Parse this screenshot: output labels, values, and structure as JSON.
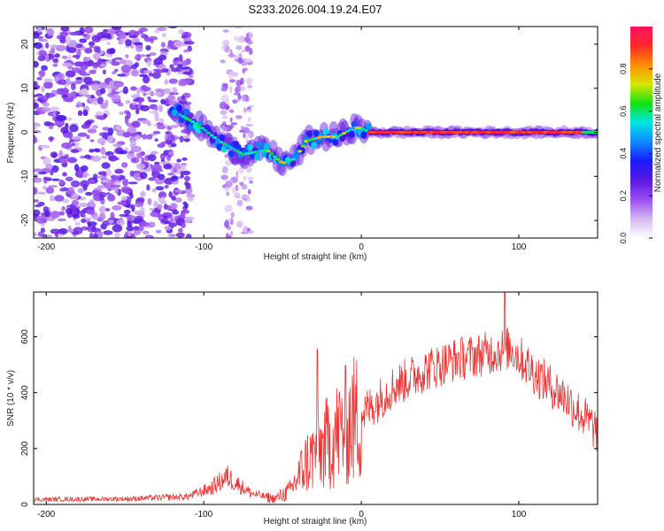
{
  "title": "S233.2026.004.19.24.E07",
  "chart_data": [
    {
      "type": "heatmap",
      "xlabel": "Height of straight line (km)",
      "ylabel": "Frequency (Hz)",
      "xlim": [
        -208,
        150
      ],
      "ylim": [
        -24,
        24
      ],
      "xticks": [
        -200,
        -100,
        0,
        100
      ],
      "yticks": [
        20,
        10,
        0,
        -10,
        -20
      ],
      "colorbar": {
        "label": "Normalized spectral amplitude",
        "range": [
          0,
          1
        ],
        "ticks": [
          "0.0",
          "0.2",
          "0.4",
          "0.6",
          "0.8"
        ],
        "tick_values": [
          0.0,
          0.2,
          0.4,
          0.6,
          0.8
        ],
        "colors": [
          "#ffffff",
          "#d6b8f2",
          "#9a4ef0",
          "#5b17e0",
          "#1a1aff",
          "#0f88ff",
          "#00e5e5",
          "#12e212",
          "#d6e600",
          "#ff8c00",
          "#ff2a2a",
          "#ff1060"
        ]
      },
      "ridge": {
        "description_points_x": [
          -120,
          -105,
          -90,
          -75,
          -60,
          -50,
          -42,
          -35,
          -25,
          -15,
          -5,
          0,
          5,
          20,
          60,
          100,
          150
        ],
        "description_points_y": [
          5,
          2,
          -2,
          -5,
          -4,
          -7,
          -6,
          -2,
          -1,
          -1,
          1,
          1,
          0,
          0,
          0,
          0,
          0
        ]
      }
    },
    {
      "type": "line",
      "xlabel": "Height of straight line (km)",
      "ylabel": "SNR (10 * v/v)",
      "xlim": [
        -208,
        150
      ],
      "ylim": [
        0,
        760
      ],
      "xticks": [
        -200,
        -100,
        0,
        100
      ],
      "yticks": [
        0,
        200,
        400,
        600
      ],
      "color": "#ee3333",
      "envelope_x": [
        -208,
        -150,
        -110,
        -95,
        -85,
        -70,
        -55,
        -45,
        -35,
        -25,
        -10,
        0,
        20,
        40,
        60,
        80,
        95,
        110,
        130,
        150
      ],
      "envelope_y": [
        18,
        20,
        28,
        60,
        100,
        40,
        20,
        50,
        150,
        200,
        280,
        320,
        420,
        480,
        520,
        540,
        560,
        470,
        380,
        260
      ]
    }
  ]
}
